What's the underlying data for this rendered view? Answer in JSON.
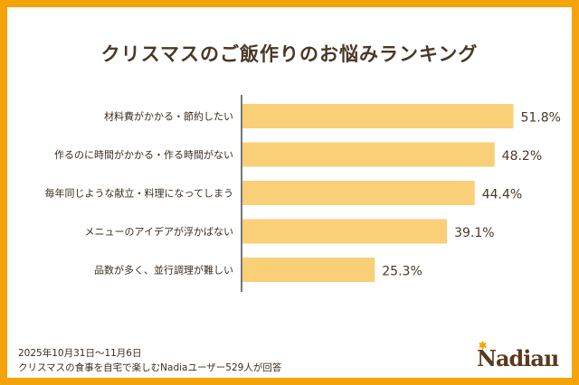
{
  "chart_data": {
    "type": "bar",
    "orientation": "horizontal",
    "title": "クリスマスのご飯作りのお悩みランキング",
    "categories": [
      "材料費がかかる・節約したい",
      "作るのに時間がかかる・作る時間がない",
      "毎年同じような献立・料理になってしまう",
      "メニューのアイデアが浮かばない",
      "品数が多く、並行調理が難しい"
    ],
    "values": [
      51.8,
      48.2,
      44.4,
      39.1,
      25.3
    ],
    "value_labels": [
      "51.8%",
      "48.2%",
      "44.4%",
      "39.1%",
      "25.3%"
    ],
    "unit": "%",
    "xlim": [
      0,
      55
    ],
    "bar_color": "#F9CF78",
    "grid": false
  },
  "footer": {
    "period": "2025年10月31日〜11月6日",
    "note": "クリスマスの食事を自宅で楽しむNadiaユーザー529人が回答"
  },
  "logo": "Nadia",
  "colors": {
    "border": "#F5A30A",
    "text": "#4a3826"
  }
}
